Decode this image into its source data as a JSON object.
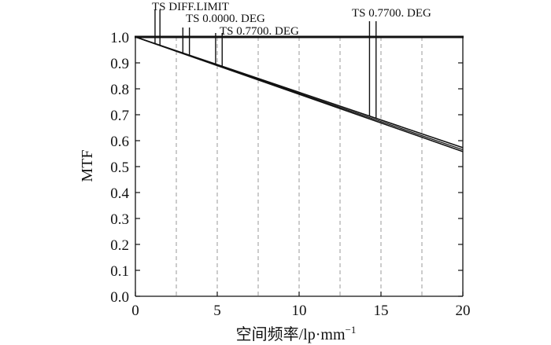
{
  "chart_data": {
    "type": "line",
    "xlabel": "空间频率/lp·mm",
    "xlabel_superscript": "−1",
    "ylabel": "MTF",
    "xlim": [
      0,
      20
    ],
    "ylim": [
      0,
      1
    ],
    "x_ticks": [
      0,
      5,
      10,
      15,
      20
    ],
    "x_tick_labels": [
      "0",
      "5",
      "10",
      "15",
      "20"
    ],
    "y_ticks": [
      0,
      0.1,
      0.2,
      0.3,
      0.4,
      0.5,
      0.6,
      0.7,
      0.8,
      0.9,
      1.0
    ],
    "y_tick_labels": [
      "0.0",
      "0.1",
      "0.2",
      "0.3",
      "0.4",
      "0.5",
      "0.6",
      "0.7",
      "0.8",
      "0.9",
      "1.0"
    ],
    "grid": {
      "x": true,
      "y": false,
      "x_positions": [
        2.5,
        5,
        7.5,
        10,
        12.5,
        15,
        17.5
      ]
    },
    "legend": "none",
    "series": [
      {
        "x": [
          0,
          20
        ],
        "y": [
          1.0,
          0.573
        ]
      },
      {
        "x": [
          0,
          20
        ],
        "y": [
          1.0,
          0.565
        ]
      },
      {
        "x": [
          0,
          20
        ],
        "y": [
          1.0,
          0.558
        ]
      }
    ],
    "annotations": [
      {
        "text": "TS DIFF.LIMIT",
        "x_values": [
          1.2,
          1.5
        ]
      },
      {
        "text": "TS 0.0000. DEG",
        "x_values": [
          2.9,
          3.3
        ]
      },
      {
        "text": "TS 0.7700. DEG",
        "x_values": [
          4.9,
          5.3
        ]
      },
      {
        "text": "TS 0.7700. DEG",
        "x_values": [
          14.3,
          14.7
        ]
      }
    ]
  }
}
